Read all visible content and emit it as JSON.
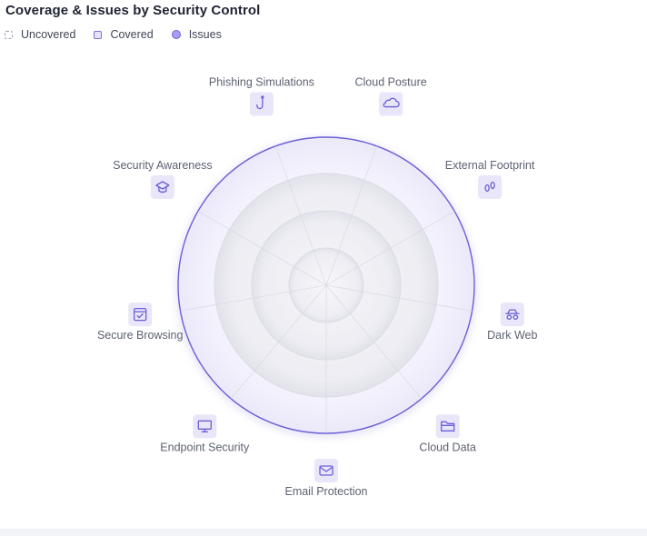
{
  "title": "Coverage & Issues by Security Control",
  "legend": {
    "uncovered": "Uncovered",
    "covered": "Covered",
    "issues": "Issues"
  },
  "colors": {
    "accent": "#6b5fd6",
    "icon_bg": "#e8e6f8",
    "icon_stroke": "#6b5fd6",
    "ring_fill": "#f1f0fb",
    "label": "#5d6272"
  },
  "chart_data": {
    "type": "radar",
    "categories": [
      "Cloud Posture",
      "External Footprint",
      "Dark Web",
      "Cloud Data",
      "Email Protection",
      "Endpoint Security",
      "Secure Browsing",
      "Security Awareness",
      "Phishing Simulations"
    ],
    "category_icons": [
      "cloud-icon",
      "footprints-icon",
      "spy-glasses-icon",
      "folder-icon",
      "envelope-icon",
      "monitor-icon",
      "browser-check-icon",
      "graduation-cap-icon",
      "fishhook-icon"
    ],
    "rings": 4,
    "series": [
      {
        "values": [
          0,
          0,
          0,
          0,
          0,
          0,
          0,
          0,
          0
        ]
      },
      {
        "values": [
          0,
          0,
          0,
          0,
          0,
          0,
          0,
          0,
          0
        ]
      }
    ],
    "grid": true,
    "legend_position": "top-left"
  }
}
